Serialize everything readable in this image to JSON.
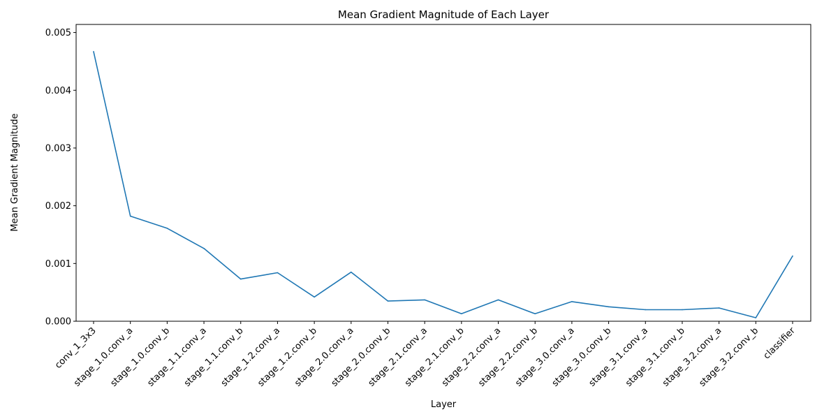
{
  "chart_data": {
    "type": "line",
    "title": "Mean Gradient Magnitude of Each Layer",
    "xlabel": "Layer",
    "ylabel": "Mean Gradient Magnitude",
    "categories": [
      "conv_1_3x3",
      "stage_1.0.conv_a",
      "stage_1.0.conv_b",
      "stage_1.1.conv_a",
      "stage_1.1.conv_b",
      "stage_1.2.conv_a",
      "stage_1.2.conv_b",
      "stage_2.0.conv_a",
      "stage_2.0.conv_b",
      "stage_2.1.conv_a",
      "stage_2.1.conv_b",
      "stage_2.2.conv_a",
      "stage_2.2.conv_b",
      "stage_3.0.conv_a",
      "stage_3.0.conv_b",
      "stage_3.1.conv_a",
      "stage_3.1.conv_b",
      "stage_3.2.conv_a",
      "stage_3.2.conv_b",
      "classifier"
    ],
    "series": [
      {
        "values": [
          0.00467,
          0.00182,
          0.00161,
          0.00126,
          0.00073,
          0.00084,
          0.00042,
          0.00085,
          0.00035,
          0.00037,
          0.00013,
          0.00037,
          0.00013,
          0.00034,
          0.00025,
          0.0002,
          0.0002,
          0.00023,
          6e-05,
          0.00113
        ]
      }
    ],
    "ylim": [
      0,
      0.00514
    ],
    "yticks": [
      "0.000",
      "0.001",
      "0.002",
      "0.003",
      "0.004",
      "0.005"
    ],
    "ytick_values": [
      0,
      0.001,
      0.002,
      0.003,
      0.004,
      0.005
    ],
    "grid": false,
    "line_color": "#1f77b4"
  }
}
